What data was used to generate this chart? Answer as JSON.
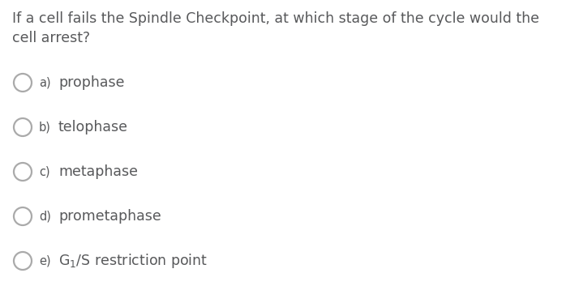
{
  "background_color": "#ffffff",
  "question_line1": "If a cell fails the Spindle Checkpoint, at which stage of the cycle would the",
  "question_line2": "cell arrest?",
  "options": [
    {
      "label": "a)",
      "text": "prophase"
    },
    {
      "label": "b)",
      "text": "telophase"
    },
    {
      "label": "c)",
      "text": "metaphase"
    },
    {
      "label": "d)",
      "text": "prometaphase"
    },
    {
      "label": "e)",
      "text": "G$_1$/S restriction point"
    }
  ],
  "text_color": "#58595b",
  "circle_edge_color": "#aaaaaa",
  "question_fontsize": 12.5,
  "option_label_fontsize": 10.5,
  "option_text_fontsize": 12.5,
  "fig_width": 7.14,
  "fig_height": 3.74,
  "dpi": 100
}
